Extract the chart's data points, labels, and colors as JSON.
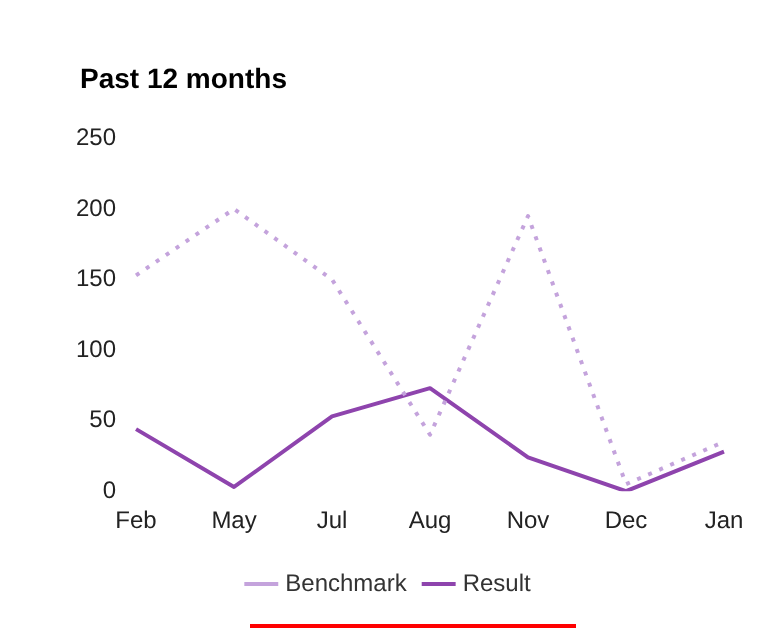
{
  "chart_data": {
    "type": "line",
    "title": "Past 12 months",
    "categories": [
      "Feb",
      "May",
      "Jul",
      "Aug",
      "Nov",
      "Dec",
      "Jan"
    ],
    "series": [
      {
        "name": "Benchmark",
        "color": "#c4a3dc",
        "line_style": "dotted",
        "values": [
          153,
          200,
          150,
          40,
          195,
          5,
          35
        ]
      },
      {
        "name": "Result",
        "color": "#8e44ad",
        "line_style": "solid",
        "values": [
          44,
          3,
          53,
          73,
          24,
          0,
          28
        ]
      }
    ],
    "ylim": [
      0,
      250
    ],
    "yticks": [
      0,
      50,
      100,
      150,
      200,
      250
    ],
    "grid": false,
    "legend": "bottom",
    "marker": "none"
  }
}
